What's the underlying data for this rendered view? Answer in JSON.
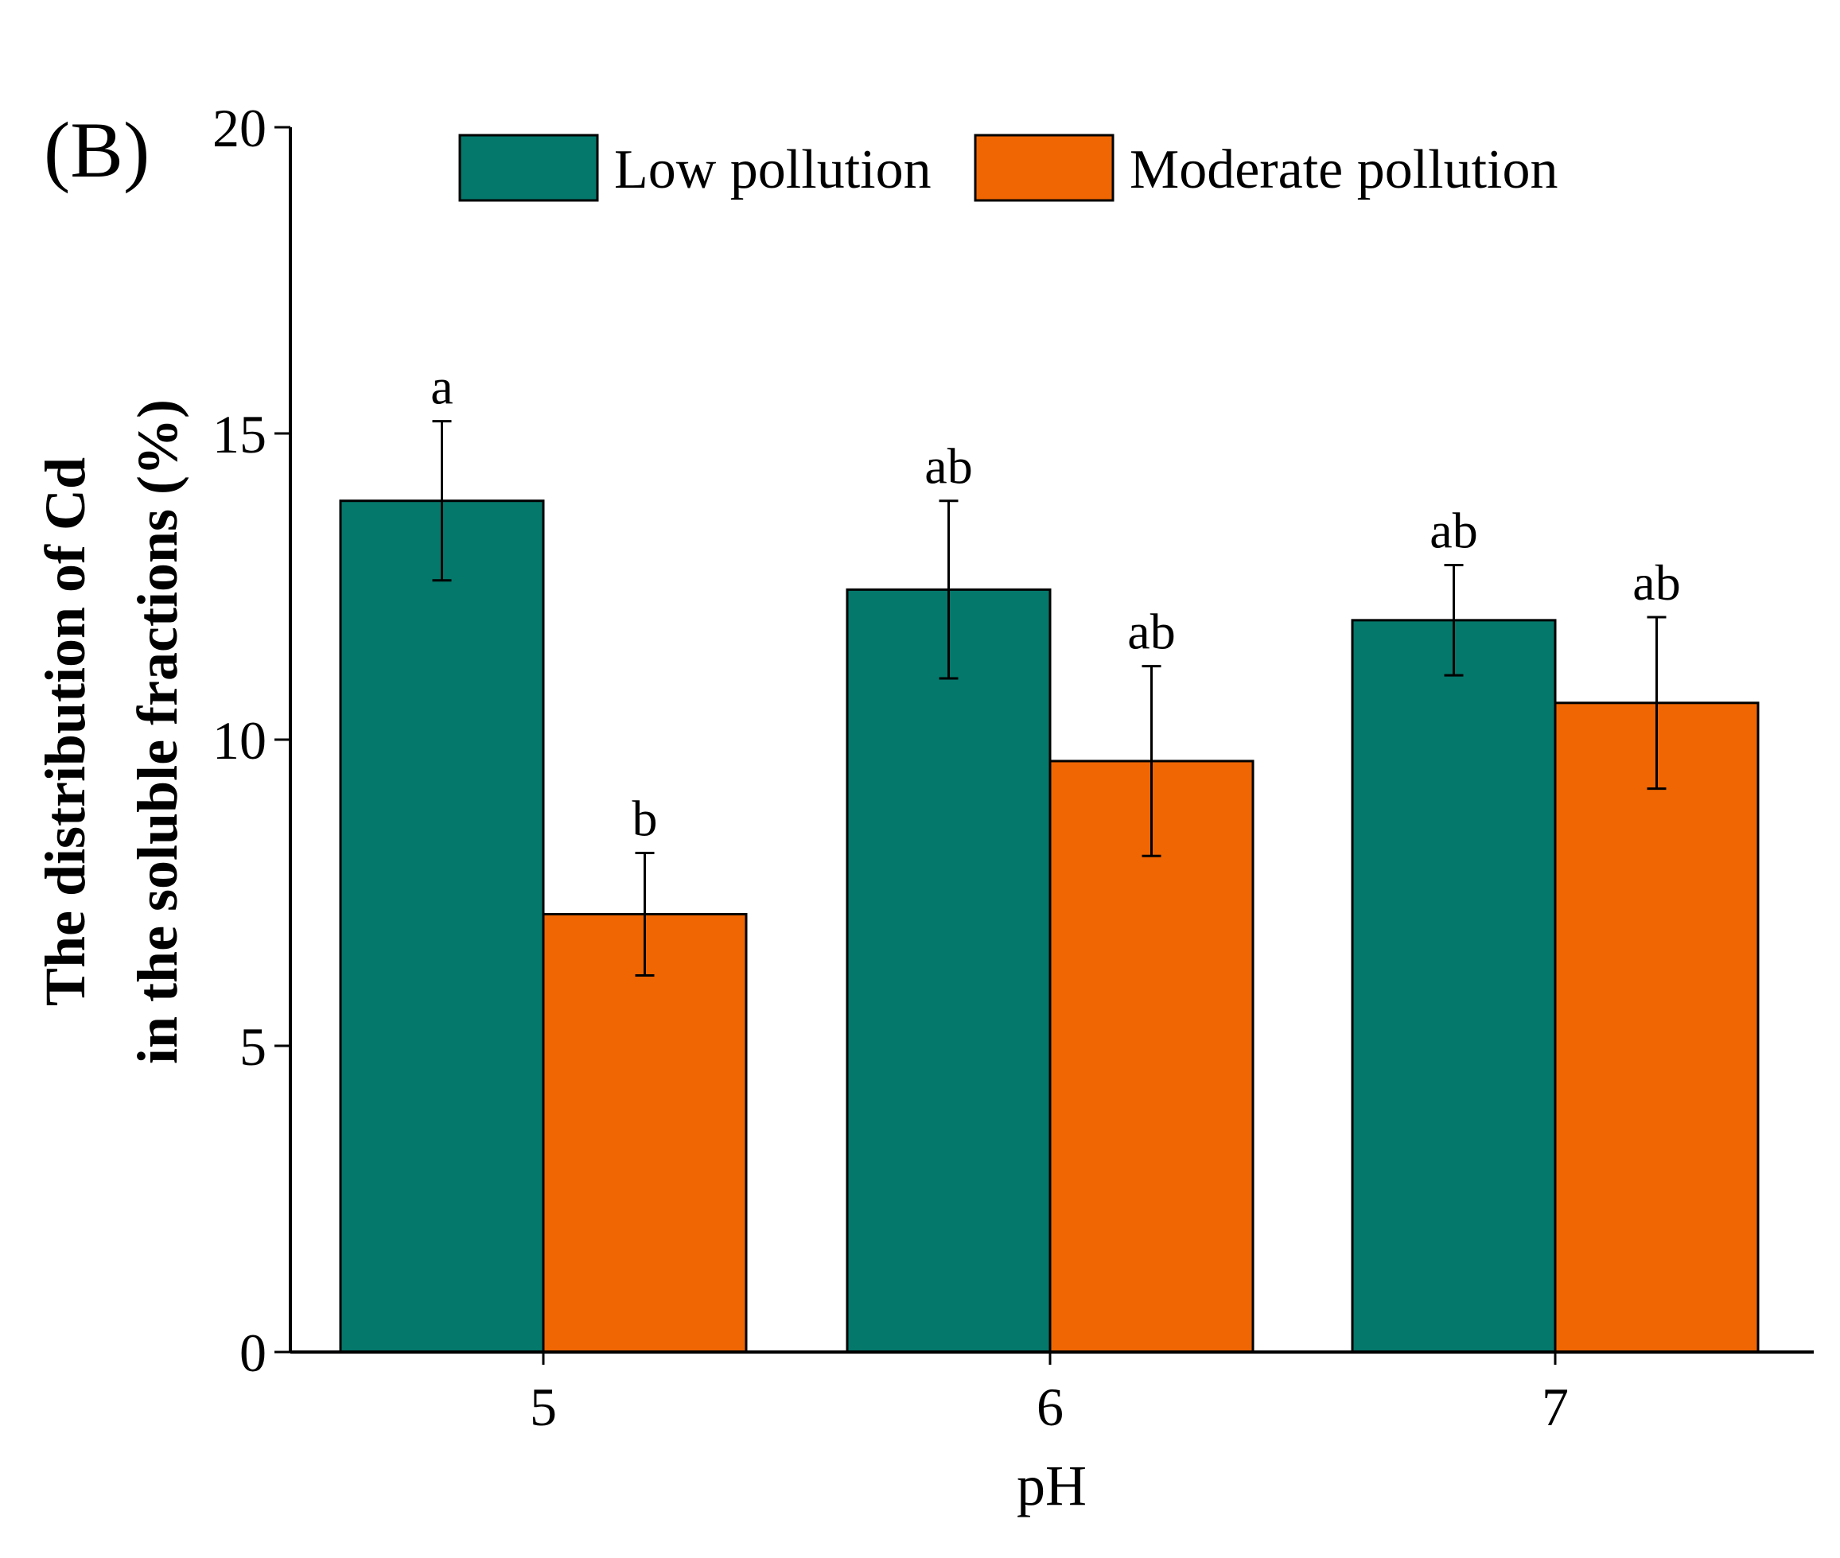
{
  "chart_data": {
    "type": "bar",
    "panel_label": "(B)",
    "categories": [
      "5",
      "6",
      "7"
    ],
    "series": [
      {
        "name": "Low pollution",
        "color": "#04786B",
        "values": [
          13.9,
          12.45,
          11.95
        ],
        "errors": [
          1.3,
          1.45,
          0.9
        ],
        "letters": [
          "a",
          "ab",
          "ab"
        ]
      },
      {
        "name": "Moderate pollution",
        "color": "#EF6603",
        "values": [
          7.15,
          9.65,
          10.6
        ],
        "errors": [
          1.0,
          1.55,
          1.4
        ],
        "letters": [
          "b",
          "ab",
          "ab"
        ]
      }
    ],
    "xlabel": "pH",
    "ylabel_lines": [
      "The distribution of Cd",
      "in the soluble fractions (%)"
    ],
    "ylim": [
      0,
      20
    ],
    "yticks": [
      0,
      5,
      10,
      15,
      20
    ],
    "legend_position": "top"
  }
}
